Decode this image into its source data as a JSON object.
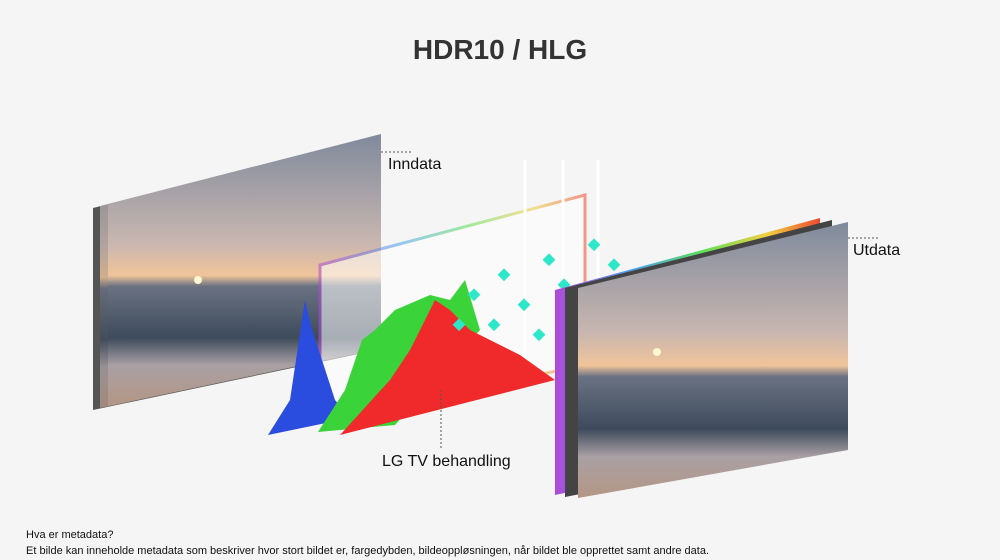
{
  "title": "HDR10 / HLG",
  "labels": {
    "input": "Inndata",
    "processing": "LG TV behandling",
    "output": "Utdata"
  },
  "footer": {
    "question": "Hva er metadata?",
    "answer": "Et bilde kan inneholde metadata som beskriver hvor stort bildet er, fargedybden, bildeoppløsningen, når bildet ble opprettet samt andre data."
  },
  "colors": {
    "histogram_blue": "#2a4de0",
    "histogram_green": "#3ad43a",
    "histogram_red": "#f02a2a",
    "particles": "#2de8c8"
  }
}
